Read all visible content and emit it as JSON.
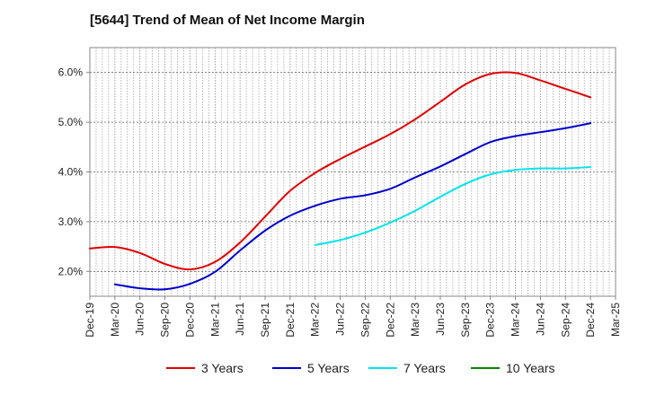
{
  "chart_data": {
    "type": "line",
    "title": "[5644]  Trend of Mean of Net Income Margin",
    "xlabel": "",
    "ylabel": "",
    "categories": [
      "Dec-19",
      "Mar-20",
      "Jun-20",
      "Sep-20",
      "Dec-20",
      "Mar-21",
      "Jun-21",
      "Sep-21",
      "Dec-21",
      "Mar-22",
      "Jun-22",
      "Sep-22",
      "Dec-22",
      "Mar-23",
      "Jun-23",
      "Sep-23",
      "Dec-23",
      "Mar-24",
      "Jun-24",
      "Sep-24",
      "Dec-24",
      "Mar-25"
    ],
    "yticks": [
      "2.0%",
      "3.0%",
      "4.0%",
      "5.0%",
      "6.0%"
    ],
    "ytick_values": [
      2.0,
      3.0,
      4.0,
      5.0,
      6.0
    ],
    "ylim": [
      1.5,
      6.5
    ],
    "grid": true,
    "legend_position": "bottom",
    "series": [
      {
        "name": "3 Years",
        "color": "#e00000",
        "values": [
          2.46,
          2.49,
          2.37,
          2.15,
          2.04,
          2.19,
          2.58,
          3.1,
          3.62,
          3.98,
          4.26,
          4.51,
          4.76,
          5.06,
          5.41,
          5.76,
          5.97,
          5.99,
          5.84,
          5.67,
          5.5,
          null
        ]
      },
      {
        "name": "5 Years",
        "color": "#0000cc",
        "values": [
          null,
          1.74,
          1.66,
          1.64,
          1.75,
          1.99,
          2.42,
          2.82,
          3.12,
          3.32,
          3.46,
          3.53,
          3.66,
          3.89,
          4.11,
          4.36,
          4.6,
          4.72,
          4.8,
          4.88,
          4.98,
          null
        ]
      },
      {
        "name": "7 Years",
        "color": "#00e5ee",
        "values": [
          null,
          null,
          null,
          null,
          null,
          null,
          null,
          null,
          null,
          2.53,
          2.63,
          2.78,
          2.98,
          3.22,
          3.5,
          3.76,
          3.95,
          4.04,
          4.07,
          4.07,
          4.1,
          null
        ]
      },
      {
        "name": "10 Years",
        "color": "#008800",
        "values": [
          null,
          null,
          null,
          null,
          null,
          null,
          null,
          null,
          null,
          null,
          null,
          null,
          null,
          null,
          null,
          null,
          null,
          null,
          null,
          null,
          null,
          null
        ]
      }
    ]
  }
}
